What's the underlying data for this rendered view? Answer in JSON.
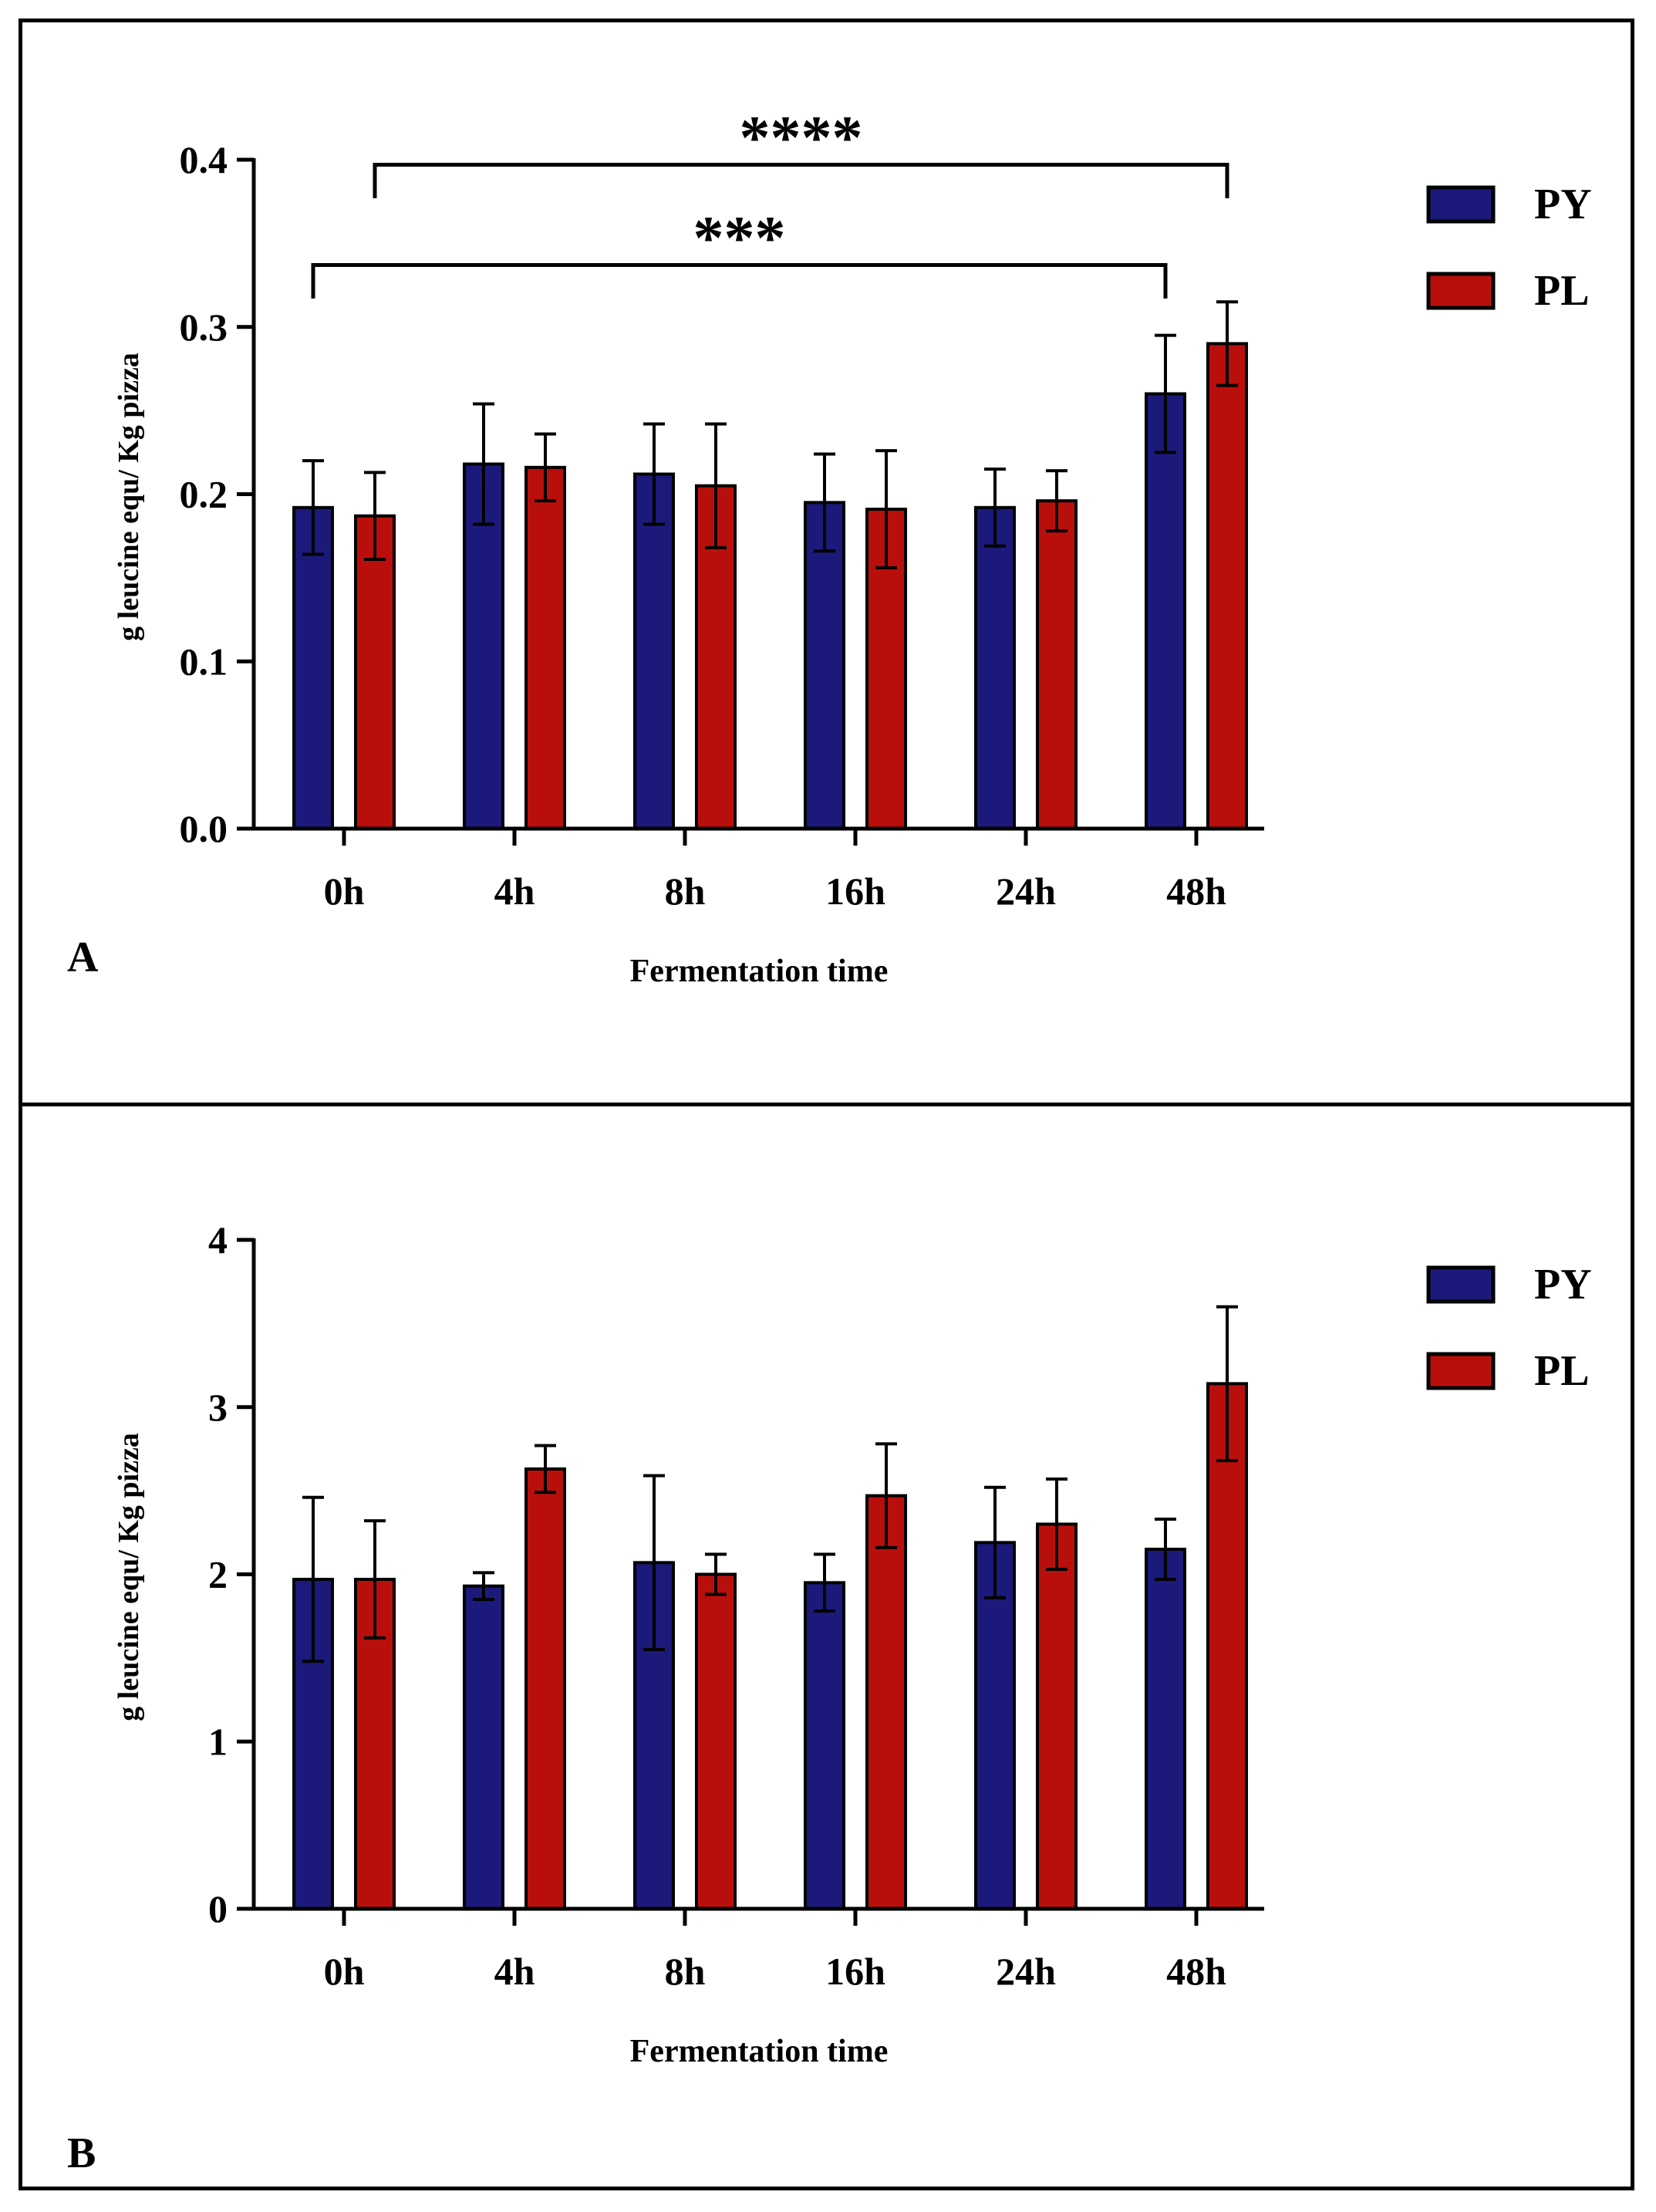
{
  "colors": {
    "PY": "#1b1a7a",
    "PL": "#b90f0c",
    "axis": "#000000"
  },
  "chart_data": [
    {
      "panel_label": "A",
      "type": "bar",
      "title": "",
      "xlabel": "Fermentation time",
      "ylabel": "g leucine equ/ Kg pizza",
      "categories": [
        "0h",
        "4h",
        "8h",
        "16h",
        "24h",
        "48h"
      ],
      "ylim": [
        0,
        0.4
      ],
      "yticks": [
        0.0,
        0.1,
        0.2,
        0.3,
        0.4
      ],
      "ytick_labels": [
        "0.0",
        "0.1",
        "0.2",
        "0.3",
        "0.4"
      ],
      "legend": {
        "position": "top-right",
        "entries": [
          "PY",
          "PL"
        ]
      },
      "series": [
        {
          "name": "PY",
          "values": [
            0.192,
            0.218,
            0.212,
            0.195,
            0.192,
            0.26
          ],
          "errors": [
            0.028,
            0.036,
            0.03,
            0.029,
            0.023,
            0.035
          ]
        },
        {
          "name": "PL",
          "values": [
            0.187,
            0.216,
            0.205,
            0.191,
            0.196,
            0.29
          ],
          "errors": [
            0.026,
            0.02,
            0.037,
            0.035,
            0.018,
            0.025
          ]
        }
      ],
      "annotations": [
        {
          "text": "****",
          "from": {
            "category": "0h",
            "series": "PL"
          },
          "to": {
            "category": "48h",
            "series": "PL"
          },
          "y": 0.397,
          "drop": 0.02
        },
        {
          "text": "***",
          "from": {
            "category": "0h",
            "series": "PY"
          },
          "to": {
            "category": "48h",
            "series": "PY"
          },
          "y": 0.337,
          "drop": 0.02
        }
      ]
    },
    {
      "panel_label": "B",
      "type": "bar",
      "title": "",
      "xlabel": "Fermentation time",
      "ylabel": "g leucine equ/ Kg pizza",
      "categories": [
        "0h",
        "4h",
        "8h",
        "16h",
        "24h",
        "48h"
      ],
      "ylim": [
        0,
        4
      ],
      "yticks": [
        0,
        1,
        2,
        3,
        4
      ],
      "ytick_labels": [
        "0",
        "1",
        "2",
        "3",
        "4"
      ],
      "legend": {
        "position": "top-right",
        "entries": [
          "PY",
          "PL"
        ]
      },
      "series": [
        {
          "name": "PY",
          "values": [
            1.97,
            1.93,
            2.07,
            1.95,
            2.19,
            2.15
          ],
          "errors": [
            0.49,
            0.08,
            0.52,
            0.17,
            0.33,
            0.18
          ]
        },
        {
          "name": "PL",
          "values": [
            1.97,
            2.63,
            2.0,
            2.47,
            2.3,
            3.14
          ],
          "errors": [
            0.35,
            0.14,
            0.12,
            0.31,
            0.27,
            0.46
          ]
        }
      ],
      "annotations": []
    }
  ]
}
